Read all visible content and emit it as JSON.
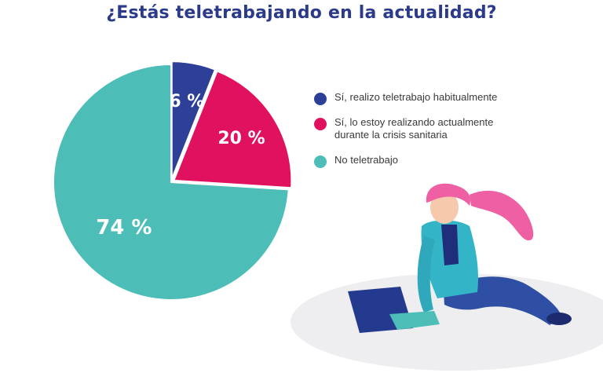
{
  "chart_data": {
    "type": "pie",
    "title": "¿Estás teletrabajando en la actualidad?",
    "slices": [
      {
        "label": "Sí, realizo teletrabajo habitualmente",
        "value": 6,
        "display": "6 %",
        "color": "#2e3f97"
      },
      {
        "label": "Sí, lo estoy realizando actualmente durante la crisis sanitaria",
        "value": 20,
        "display": "20 %",
        "color": "#e0115e"
      },
      {
        "label": "No teletrabajo",
        "value": 74,
        "display": "74 %",
        "color": "#4dbdb8"
      }
    ],
    "legend_position": "right"
  },
  "colors": {
    "title": "#2b3a8a",
    "legend_text": "#3a3a3a",
    "slice_label": "#ffffff"
  },
  "decor": {
    "illustration": "woman-with-laptop-illustration"
  }
}
